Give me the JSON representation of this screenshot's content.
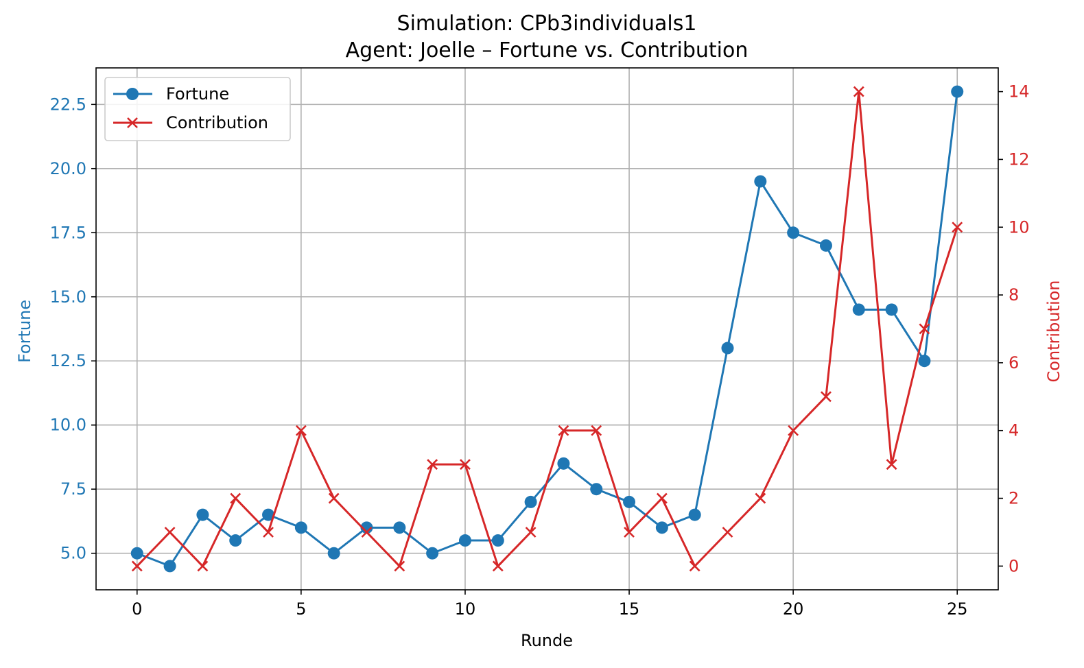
{
  "chart_data": {
    "type": "line",
    "title": "Simulation: CPb3individuals1",
    "subtitle": "Agent: Joelle – Fortune vs. Contribution",
    "xlabel": "Runde",
    "ylabel_left": "Fortune",
    "ylabel_right": "Contribution",
    "x": [
      0,
      1,
      2,
      3,
      4,
      5,
      6,
      7,
      8,
      9,
      10,
      11,
      12,
      13,
      14,
      15,
      16,
      17,
      18,
      19,
      20,
      21,
      22,
      23,
      24,
      25
    ],
    "xlim": [
      -1.25,
      26.25
    ],
    "ylim_left": [
      3.575,
      23.925
    ],
    "ylim_right": [
      -0.7,
      14.7
    ],
    "x_ticks": [
      0,
      5,
      10,
      15,
      20,
      25
    ],
    "y_ticks_left": [
      5.0,
      7.5,
      10.0,
      12.5,
      15.0,
      17.5,
      20.0,
      22.5
    ],
    "y_ticks_right": [
      0,
      2,
      4,
      6,
      8,
      10,
      12,
      14
    ],
    "grid": true,
    "legend_position": "upper-left",
    "series": [
      {
        "name": "Fortune",
        "axis": "left",
        "marker": "circle",
        "color": "#1f77b4",
        "values": [
          5.0,
          4.5,
          6.5,
          5.5,
          6.5,
          6.0,
          5.0,
          6.0,
          6.0,
          5.0,
          5.5,
          5.5,
          7.0,
          8.5,
          7.5,
          7.0,
          6.0,
          6.5,
          13.0,
          19.5,
          17.5,
          17.0,
          14.5,
          14.5,
          12.5,
          23.0
        ]
      },
      {
        "name": "Contribution",
        "axis": "right",
        "marker": "x",
        "color": "#d62728",
        "values": [
          0,
          1,
          0,
          2,
          1,
          4,
          2,
          1,
          0,
          3,
          3,
          0,
          1,
          4,
          4,
          1,
          2,
          0,
          1,
          2,
          4,
          5,
          14,
          3,
          7,
          10
        ]
      }
    ]
  }
}
